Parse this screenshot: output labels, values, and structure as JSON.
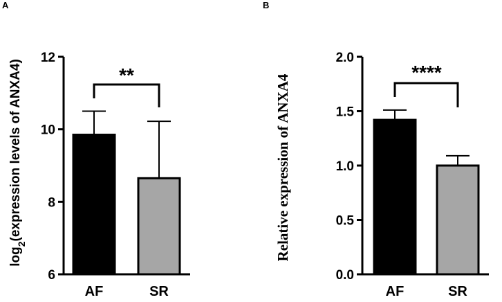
{
  "panels": [
    {
      "label": "A"
    },
    {
      "label": "B"
    }
  ],
  "chart_data": [
    {
      "type": "bar",
      "panel": "A",
      "title": "",
      "xlabel": "",
      "ylabel": "(expression levels of ANXA4)",
      "ylabel_prefix": "log",
      "ylabel_subscript": "2",
      "categories": [
        "AF",
        "SR"
      ],
      "values": [
        9.85,
        8.65
      ],
      "error_upper": [
        10.5,
        10.22
      ],
      "bar_colors": [
        "#000000",
        "#a6a6a6"
      ],
      "ylim": [
        6,
        12
      ],
      "yticks": [
        "6",
        "8",
        "10",
        "12"
      ],
      "significance": "**"
    },
    {
      "type": "bar",
      "panel": "B",
      "title": "",
      "xlabel": "",
      "ylabel": "Relative expression of ANXA4",
      "categories": [
        "AF",
        "SR"
      ],
      "values": [
        1.42,
        1.0
      ],
      "error_upper": [
        1.51,
        1.09
      ],
      "bar_colors": [
        "#000000",
        "#a6a6a6"
      ],
      "ylim": [
        0,
        2
      ],
      "yticks": [
        "0.0",
        "0.5",
        "1.0",
        "1.5",
        "2.0"
      ],
      "significance": "****"
    }
  ]
}
